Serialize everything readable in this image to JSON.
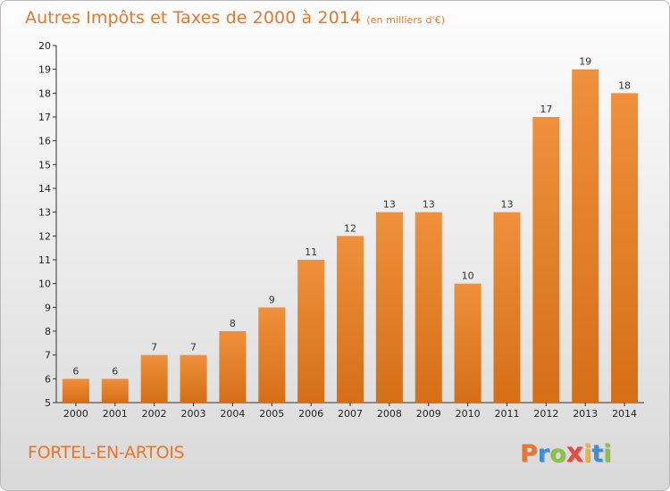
{
  "chart_data": {
    "type": "bar",
    "title": "Autres Impôts et Taxes de 2000 à 2014",
    "unit_note": "(en milliers d'€)",
    "categories": [
      "2000",
      "2001",
      "2002",
      "2003",
      "2004",
      "2005",
      "2006",
      "2007",
      "2008",
      "2009",
      "2010",
      "2011",
      "2012",
      "2013",
      "2014"
    ],
    "values": [
      6,
      6,
      7,
      7,
      8,
      9,
      11,
      12,
      13,
      13,
      10,
      13,
      17,
      19,
      18
    ],
    "data_labels": [
      "6",
      "6",
      "7",
      "7",
      "8",
      "9",
      "11",
      "12",
      "13",
      "13",
      "10",
      "13",
      "17",
      "19",
      "18"
    ],
    "y_ticks": [
      "5",
      "6",
      "7",
      "8",
      "9",
      "10",
      "11",
      "12",
      "13",
      "14",
      "15",
      "16",
      "17",
      "18",
      "19",
      "20"
    ],
    "ylim": [
      5,
      20
    ],
    "xlabel": "",
    "ylabel": "",
    "grid": false,
    "bar_color": "#f0903a",
    "bar_color_dark": "#d46f18"
  },
  "commune": "FORTEL-EN-ARTOIS",
  "logo": {
    "letters": [
      "P",
      "r",
      "o",
      "x",
      "i",
      "t",
      "i"
    ],
    "colors": [
      "#e8772c",
      "#3a8fd6",
      "#8ac43f",
      "#e84a3c",
      "#f2b233",
      "#3a8fd6",
      "#8ac43f"
    ]
  },
  "colors": {
    "accent": "#e8772c"
  }
}
